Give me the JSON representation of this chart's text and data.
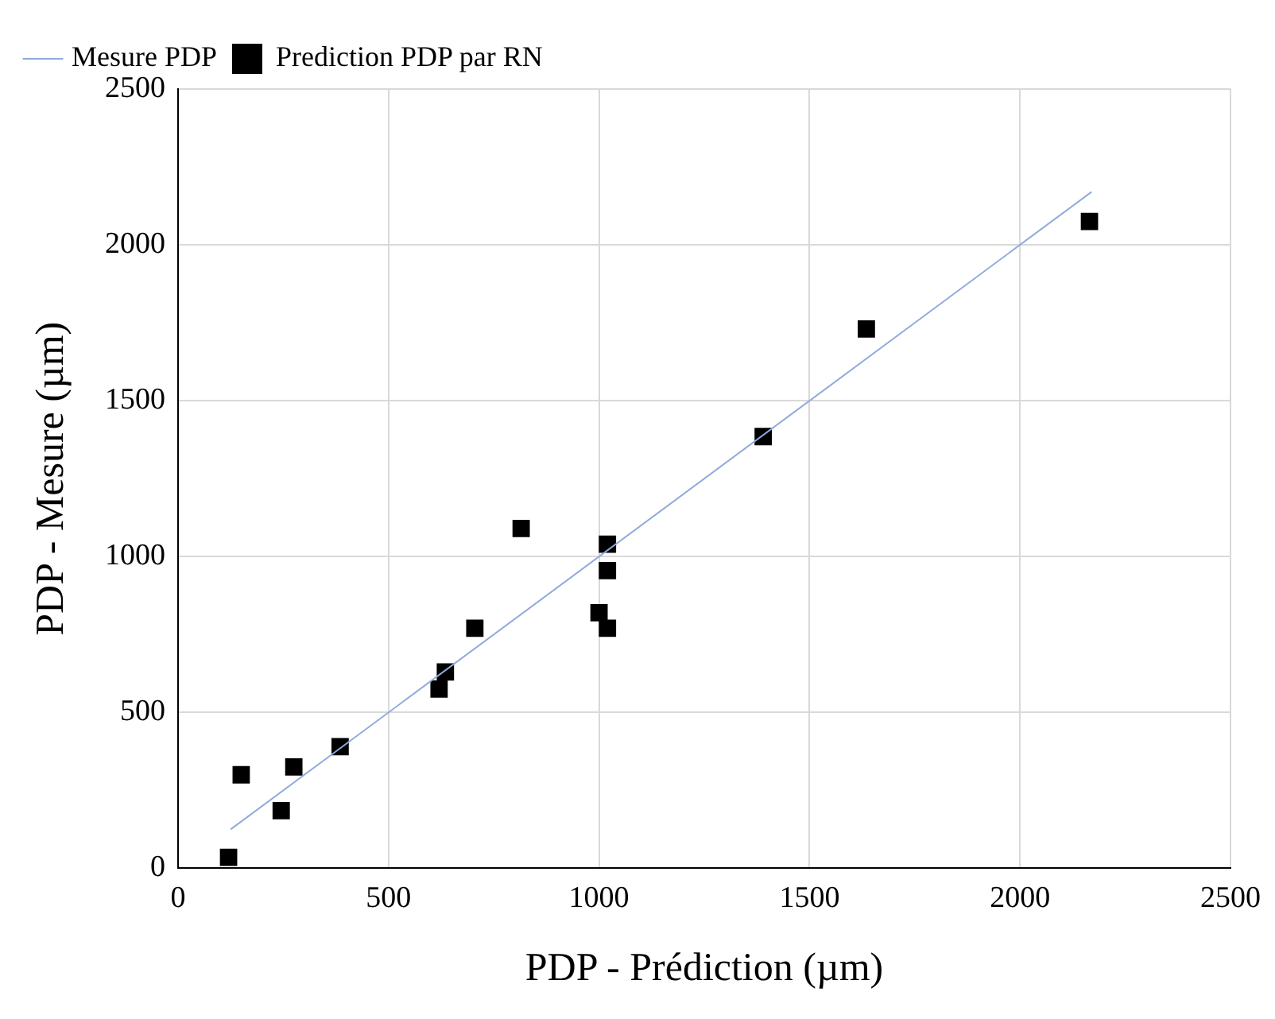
{
  "chart_data": {
    "type": "scatter",
    "xlabel": "PDP - Prédiction (µm)",
    "ylabel": "PDP - Mesure (µm)",
    "xlim": [
      0,
      2500
    ],
    "ylim": [
      0,
      2500
    ],
    "xticks": [
      0,
      500,
      1000,
      1500,
      2000,
      2500
    ],
    "yticks": [
      0,
      500,
      1000,
      1500,
      2000,
      2500
    ],
    "grid": true,
    "legend": "top left",
    "marker": "square",
    "series": [
      {
        "name": "Mesure PDP",
        "type": "line",
        "color": "#8faadc",
        "marker": "none",
        "x": [
          125,
          2170
        ],
        "values": [
          125,
          2170
        ]
      },
      {
        "name": "Prediction PDP par RN",
        "type": "scatter",
        "color": "#000000",
        "x": [
          120,
          150,
          245,
          275,
          385,
          620,
          635,
          705,
          815,
          1000,
          1020,
          1020,
          1020,
          1390,
          1635,
          2165
        ],
        "values": [
          35,
          300,
          185,
          325,
          390,
          575,
          630,
          770,
          1090,
          820,
          770,
          955,
          1040,
          1385,
          1730,
          2075
        ]
      }
    ]
  }
}
